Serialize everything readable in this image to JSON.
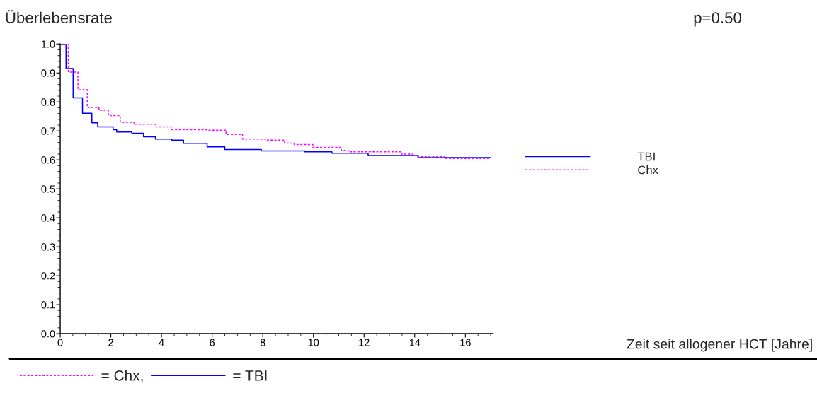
{
  "chart_data": {
    "type": "step",
    "title": "Überlebensrate",
    "annotations": [
      "p=0.50",
      "Zeit seit allogener HCT [Jahre]",
      "= Chx,",
      "= TBI"
    ],
    "xlim": [
      0,
      17.1
    ],
    "xticks": [
      0,
      2,
      4,
      6,
      8,
      10,
      12,
      14,
      16
    ],
    "ylim": [
      0.0,
      1.0
    ],
    "yticks": [
      {
        "value": 0,
        "label": "0.0"
      },
      0.1,
      0.2,
      0.3,
      0.4,
      0.5,
      0.6,
      0.7,
      0.8,
      0.9,
      {
        "value": 1,
        "label": "1.0"
      }
    ],
    "grid": false,
    "legend": "right",
    "marker": "none",
    "series": [
      {
        "name": "TBI",
        "color": "#0000ff",
        "line_style": "solid",
        "x": [
          0,
          0.23,
          0.51,
          0.88,
          1.25,
          1.48,
          2.09,
          2.23,
          2.83,
          3.29,
          3.76,
          4.4,
          4.87,
          5.8,
          6.5,
          7.94,
          9.66,
          10.73,
          12.16,
          14.13,
          17.0
        ],
        "values": [
          1.0,
          0.915,
          0.814,
          0.761,
          0.728,
          0.714,
          0.704,
          0.696,
          0.692,
          0.68,
          0.672,
          0.668,
          0.657,
          0.645,
          0.636,
          0.631,
          0.628,
          0.623,
          0.615,
          0.608,
          0.608
        ]
      },
      {
        "name": "Chx",
        "color": "#ff00ff",
        "line_style": "dashed",
        "x": [
          0,
          0.32,
          0.7,
          1.07,
          1.53,
          1.9,
          2.37,
          2.92,
          3.48,
          3.76,
          4.41,
          5.8,
          6.55,
          7.2,
          8.12,
          8.86,
          9.24,
          9.98,
          11.1,
          11.37,
          13.23,
          13.5,
          13.93,
          14.15,
          15.18,
          17.0
        ],
        "values": [
          1.0,
          0.903,
          0.842,
          0.781,
          0.771,
          0.753,
          0.73,
          0.723,
          0.723,
          0.714,
          0.704,
          0.702,
          0.688,
          0.672,
          0.668,
          0.658,
          0.653,
          0.643,
          0.633,
          0.628,
          0.628,
          0.62,
          0.615,
          0.612,
          0.605,
          0.605
        ]
      }
    ]
  }
}
